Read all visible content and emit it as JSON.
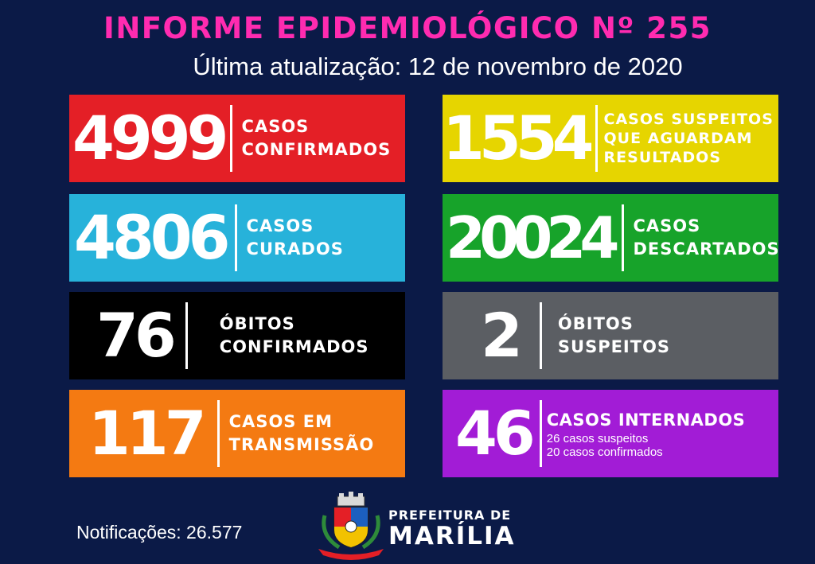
{
  "header": {
    "title": "INFORME EPIDEMIOLÓGICO Nº 255",
    "subtitle": "Última atualização: 12 de novembro de 2020"
  },
  "cards": {
    "confirmed": {
      "value": "4999",
      "line1": "CASOS",
      "line2": "CONFIRMADOS",
      "color": "#e41f26"
    },
    "suspected": {
      "value": "1554",
      "line1": "CASOS SUSPEITOS",
      "line2": "QUE AGUARDAM",
      "line3": "RESULTADOS",
      "color": "#e6d500"
    },
    "cured": {
      "value": "4806",
      "line1": "CASOS",
      "line2": "CURADOS",
      "color": "#27b2da"
    },
    "discarded": {
      "value": "20024",
      "line1": "CASOS",
      "line2": "DESCARTADOS",
      "color": "#17a32a"
    },
    "deaths_confirmed": {
      "value": "76",
      "line1": "ÓBITOS",
      "line2": "CONFIRMADOS",
      "color": "#000000"
    },
    "deaths_suspected": {
      "value": "2",
      "line1": "ÓBITOS",
      "line2": "SUSPEITOS",
      "color": "#5b5e63"
    },
    "transmission": {
      "value": "117",
      "line1": "CASOS EM",
      "line2": "TRANSMISSÃO",
      "color": "#f47a12"
    },
    "hospitalized": {
      "value": "46",
      "line1": "CASOS INTERNADOS",
      "sub1": "26 casos suspeitos",
      "sub2": "20 casos confirmados",
      "color": "#a21cd6"
    }
  },
  "footer": {
    "notifications": "Notificações: 26.577",
    "pref_line1": "PREFEITURA DE",
    "pref_line2": "MARÍLIA",
    "logo_icon": "city-coat-of-arms-icon"
  }
}
